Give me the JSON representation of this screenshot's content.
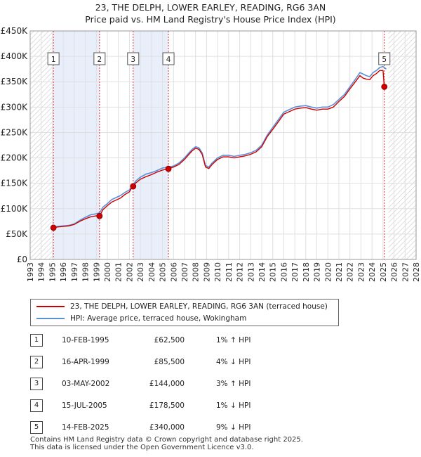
{
  "title": {
    "line1": "23, THE DELPH, LOWER EARLEY, READING, RG6 3AN",
    "line2": "Price paid vs. HM Land Registry's House Price Index (HPI)"
  },
  "legend": {
    "items": [
      {
        "label": "23, THE DELPH, LOWER EARLEY, READING, RG6 3AN (terraced house)",
        "color": "#cc0000"
      },
      {
        "label": "HPI: Average price, terraced house, Wokingham",
        "color": "#5b8fd6"
      }
    ]
  },
  "sales": [
    {
      "num": "1",
      "date": "10-FEB-1995",
      "price": "£62,500",
      "hpi": "1% ↑ HPI"
    },
    {
      "num": "2",
      "date": "16-APR-1999",
      "price": "£85,500",
      "hpi": "4% ↓ HPI"
    },
    {
      "num": "3",
      "date": "03-MAY-2002",
      "price": "£144,000",
      "hpi": "3% ↑ HPI"
    },
    {
      "num": "4",
      "date": "15-JUL-2005",
      "price": "£178,500",
      "hpi": "1% ↓ HPI"
    },
    {
      "num": "5",
      "date": "14-FEB-2025",
      "price": "£340,000",
      "hpi": "9% ↓ HPI"
    }
  ],
  "footer": {
    "line1": "Contains HM Land Registry data © Crown copyright and database right 2025.",
    "line2": "This data is licensed under the Open Government Licence v3.0."
  },
  "chart_data": {
    "type": "line",
    "title": "23, THE DELPH, LOWER EARLEY, READING, RG6 3AN — Price paid vs. HM Land Registry's House Price Index (HPI)",
    "xlabel": "",
    "ylabel": "",
    "xlim": [
      1993,
      2028
    ],
    "ylim": [
      0,
      450000
    ],
    "x_ticks": [
      "1993",
      "1994",
      "1995",
      "1996",
      "1997",
      "1998",
      "1999",
      "2000",
      "2001",
      "2002",
      "2003",
      "2004",
      "2005",
      "2006",
      "2007",
      "2008",
      "2009",
      "2010",
      "2011",
      "2012",
      "2013",
      "2014",
      "2015",
      "2016",
      "2017",
      "2018",
      "2019",
      "2020",
      "2021",
      "2022",
      "2023",
      "2024",
      "2025",
      "2026",
      "2027",
      "2028"
    ],
    "y_ticks": [
      {
        "value": 0,
        "label": "£0"
      },
      {
        "value": 50000,
        "label": "£50K"
      },
      {
        "value": 100000,
        "label": "£100K"
      },
      {
        "value": 150000,
        "label": "£150K"
      },
      {
        "value": 200000,
        "label": "£200K"
      },
      {
        "value": 250000,
        "label": "£250K"
      },
      {
        "value": 300000,
        "label": "£300K"
      },
      {
        "value": 350000,
        "label": "£350K"
      },
      {
        "value": 400000,
        "label": "£400K"
      },
      {
        "value": 450000,
        "label": "£450K"
      }
    ],
    "grid": true,
    "bands": [
      [
        1995.11,
        1999.29
      ],
      [
        2002.34,
        2005.54
      ]
    ],
    "hatched_before": 1995.0,
    "hatched_after": 2025.5,
    "sale_markers": [
      {
        "label": "1",
        "x": 1995.11,
        "y": 62500
      },
      {
        "label": "2",
        "x": 1999.29,
        "y": 85500
      },
      {
        "label": "3",
        "x": 2002.34,
        "y": 144000
      },
      {
        "label": "4",
        "x": 2005.54,
        "y": 178500
      },
      {
        "label": "5",
        "x": 2025.12,
        "y": 340000
      }
    ],
    "series": [
      {
        "name": "HPI: Average price, terraced house, Wokingham",
        "color": "#5b8fd6",
        "x": [
          1995.0,
          1995.5,
          1996.0,
          1996.5,
          1997.0,
          1997.5,
          1998.0,
          1998.5,
          1999.0,
          1999.3,
          1999.6,
          2000.0,
          2000.4,
          2000.8,
          2001.2,
          2001.6,
          2002.0,
          2002.3,
          2002.6,
          2003.0,
          2003.5,
          2004.0,
          2004.5,
          2005.0,
          2005.5,
          2006.0,
          2006.5,
          2007.0,
          2007.4,
          2007.7,
          2008.0,
          2008.3,
          2008.6,
          2008.9,
          2009.2,
          2009.5,
          2010.0,
          2010.5,
          2011.0,
          2011.5,
          2012.0,
          2012.5,
          2013.0,
          2013.5,
          2014.0,
          2014.5,
          2015.0,
          2015.5,
          2016.0,
          2016.5,
          2017.0,
          2017.5,
          2018.0,
          2018.5,
          2019.0,
          2019.5,
          2020.0,
          2020.5,
          2021.0,
          2021.5,
          2022.0,
          2022.5,
          2022.9,
          2023.2,
          2023.5,
          2023.8,
          2024.1,
          2024.4,
          2024.7,
          2025.0,
          2025.3
        ],
        "values": [
          63000,
          65000,
          66000,
          67000,
          70000,
          77000,
          83000,
          88000,
          90000,
          92000,
          103000,
          110000,
          118000,
          122000,
          126000,
          132000,
          137000,
          146000,
          155000,
          162000,
          168000,
          171000,
          175000,
          180000,
          182000,
          184000,
          190000,
          200000,
          210000,
          217000,
          222000,
          220000,
          210000,
          185000,
          182000,
          190000,
          200000,
          205000,
          205000,
          203000,
          205000,
          207000,
          210000,
          215000,
          225000,
          245000,
          260000,
          275000,
          290000,
          295000,
          300000,
          302000,
          303000,
          300000,
          298000,
          300000,
          300000,
          305000,
          315000,
          325000,
          340000,
          355000,
          368000,
          365000,
          362000,
          360000,
          368000,
          372000,
          378000,
          380000,
          375000
        ]
      },
      {
        "name": "23, THE DELPH, LOWER EARLEY, READING, RG6 3AN (terraced house)",
        "color": "#cc0000",
        "x": [
          1995.0,
          1995.5,
          1996.0,
          1996.5,
          1997.0,
          1997.5,
          1998.0,
          1998.5,
          1999.0,
          1999.3,
          1999.6,
          2000.0,
          2000.4,
          2000.8,
          2001.2,
          2001.6,
          2002.0,
          2002.3,
          2002.6,
          2003.0,
          2003.5,
          2004.0,
          2004.5,
          2005.0,
          2005.5,
          2006.0,
          2006.5,
          2007.0,
          2007.4,
          2007.7,
          2008.0,
          2008.3,
          2008.6,
          2008.9,
          2009.2,
          2009.5,
          2010.0,
          2010.5,
          2011.0,
          2011.5,
          2012.0,
          2012.5,
          2013.0,
          2013.5,
          2014.0,
          2014.5,
          2015.0,
          2015.5,
          2016.0,
          2016.5,
          2017.0,
          2017.5,
          2018.0,
          2018.5,
          2019.0,
          2019.5,
          2020.0,
          2020.5,
          2021.0,
          2021.5,
          2022.0,
          2022.5,
          2022.9,
          2023.2,
          2023.5,
          2023.8,
          2024.1,
          2024.4,
          2024.7,
          2025.0,
          2025.12,
          2025.3
        ],
        "values": [
          62500,
          64000,
          65000,
          66000,
          69000,
          75000,
          80000,
          84000,
          86000,
          85500,
          98000,
          106000,
          113000,
          117000,
          121000,
          128000,
          133000,
          144000,
          151000,
          158000,
          163000,
          167000,
          172000,
          176000,
          178500,
          182000,
          187000,
          197000,
          207000,
          214000,
          219000,
          217000,
          207000,
          182000,
          179000,
          187000,
          197000,
          202000,
          202000,
          200000,
          202000,
          204000,
          207000,
          212000,
          222000,
          242000,
          256000,
          271000,
          286000,
          291000,
          296000,
          298000,
          299000,
          296000,
          294000,
          296000,
          296000,
          300000,
          311000,
          321000,
          336000,
          350000,
          362000,
          357000,
          355000,
          354000,
          362000,
          366000,
          372000,
          372000,
          340000,
          338000
        ]
      }
    ]
  }
}
